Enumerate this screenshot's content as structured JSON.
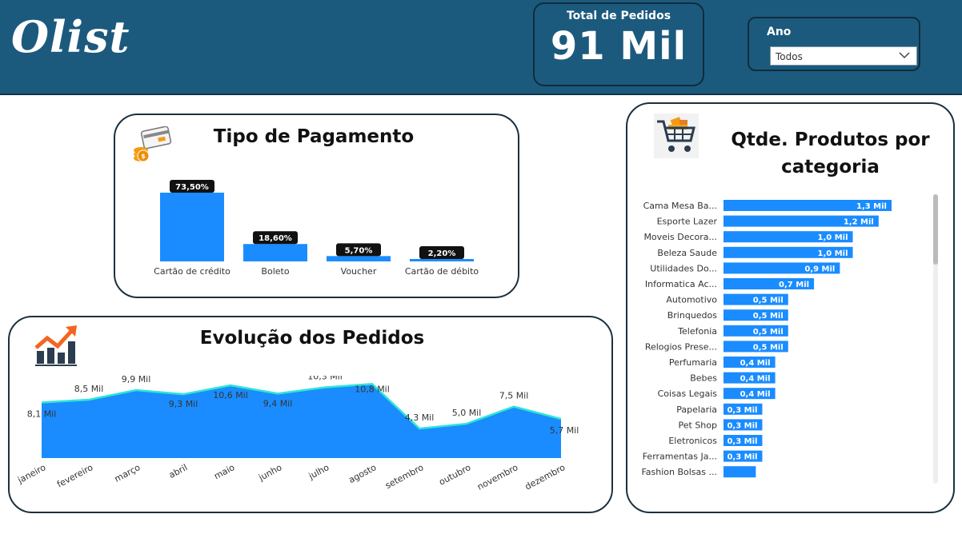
{
  "header": {
    "logo_text": "Olist",
    "kpi_label": "Total de Pedidos",
    "kpi_value": "91 Mil",
    "slicer_label": "Ano",
    "slicer_value": "Todos"
  },
  "payment_card": {
    "title": "Tipo de Pagamento",
    "icon": "credit-card-coins-icon",
    "chart_data": {
      "type": "bar",
      "categories": [
        "Cartão de crédito",
        "Boleto",
        "Voucher",
        "Cartão de débito"
      ],
      "values": [
        73.5,
        18.6,
        5.7,
        2.2
      ],
      "labels": [
        "73,50%",
        "18,60%",
        "5,70%",
        "2,20%"
      ],
      "unit": "%",
      "ylim": [
        0,
        73.5
      ],
      "color": "#1a8cff"
    }
  },
  "orders_card": {
    "title": "Evolução dos Pedidos",
    "icon": "growth-chart-icon",
    "chart_data": {
      "type": "area",
      "categories": [
        "janeiro",
        "fevereiro",
        "março",
        "abril",
        "maio",
        "junho",
        "julho",
        "agosto",
        "setembro",
        "outubro",
        "novembro",
        "dezembro"
      ],
      "values": [
        8.1,
        8.5,
        9.9,
        9.3,
        10.6,
        9.4,
        10.3,
        10.8,
        4.3,
        5.0,
        7.5,
        5.7
      ],
      "labels": [
        "8,1 Mil",
        "8,5 Mil",
        "9,9 Mil",
        "9,3 Mil",
        "10,6 Mil",
        "9,4 Mil",
        "10,3 Mil",
        "10,8 Mil",
        "4,3 Mil",
        "5,0 Mil",
        "7,5 Mil",
        "5,7 Mil"
      ],
      "unit": "Mil",
      "fill_color": "#1a8cff",
      "line_color": "#2ee6d6"
    }
  },
  "products_card": {
    "title_line1": "Qtde. Produtos por",
    "title_line2": "categoria",
    "icon": "shopping-cart-icon",
    "chart_data": {
      "type": "bar",
      "orientation": "horizontal",
      "categories": [
        "Cama Mesa Ba...",
        "Esporte Lazer",
        "Moveis Decora...",
        "Beleza Saude",
        "Utilidades Do...",
        "Informatica Ac...",
        "Automotivo",
        "Brinquedos",
        "Telefonia",
        "Relogios Prese...",
        "Perfumaria",
        "Bebes",
        "Coisas Legais",
        "Papelaria",
        "Pet Shop",
        "Eletronicos",
        "Ferramentas Ja...",
        "Fashion Bolsas ..."
      ],
      "values": [
        1.3,
        1.2,
        1.0,
        1.0,
        0.9,
        0.7,
        0.5,
        0.5,
        0.5,
        0.5,
        0.4,
        0.4,
        0.4,
        0.3,
        0.3,
        0.3,
        0.3,
        0.25
      ],
      "labels": [
        "1,3 Mil",
        "1,2 Mil",
        "1,0 Mil",
        "1,0 Mil",
        "0,9 Mil",
        "0,7 Mil",
        "0,5 Mil",
        "0,5 Mil",
        "0,5 Mil",
        "0,5 Mil",
        "0,4 Mil",
        "0,4 Mil",
        "0,4 Mil",
        "0,3 Mil",
        "0,3 Mil",
        "0,3 Mil",
        "0,3 Mil",
        ""
      ],
      "unit": "Mil",
      "color": "#1a8cff"
    }
  },
  "colors": {
    "header_bg": "#1c5a7d",
    "accent": "#1a8cff",
    "line": "#2ee6d6"
  }
}
